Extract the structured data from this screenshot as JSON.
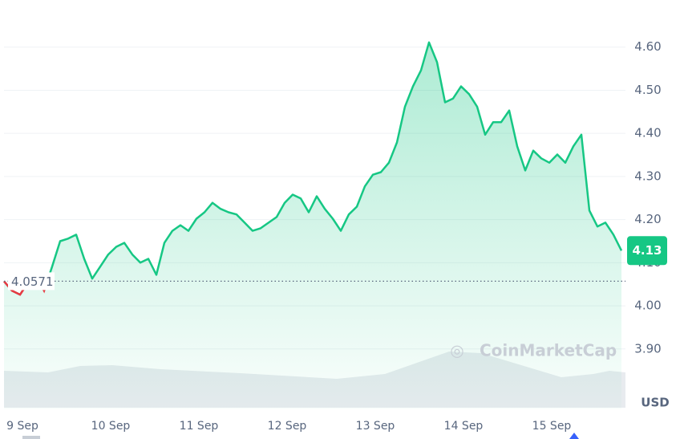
{
  "chart_data": {
    "type": "line",
    "series": [
      {
        "name": "Price",
        "color": "#16c784",
        "below_color": "#ea3943",
        "values": [
          4.057,
          4.035,
          4.026,
          4.054,
          4.072,
          4.035,
          4.091,
          4.15,
          4.156,
          4.165,
          4.109,
          4.063,
          4.091,
          4.119,
          4.137,
          4.146,
          4.119,
          4.1,
          4.109,
          4.072,
          4.146,
          4.174,
          4.187,
          4.174,
          4.202,
          4.217,
          4.239,
          4.225,
          4.217,
          4.212,
          4.193,
          4.174,
          4.18,
          4.193,
          4.206,
          4.239,
          4.258,
          4.249,
          4.217,
          4.254,
          4.225,
          4.202,
          4.174,
          4.212,
          4.23,
          4.277,
          4.304,
          4.31,
          4.332,
          4.379,
          4.462,
          4.509,
          4.546,
          4.611,
          4.565,
          4.472,
          4.481,
          4.509,
          4.491,
          4.462,
          4.397,
          4.426,
          4.426,
          4.453,
          4.37,
          4.314,
          4.36,
          4.342,
          4.332,
          4.351,
          4.332,
          4.37,
          4.397,
          4.221,
          4.184,
          4.193,
          4.165,
          4.128
        ]
      }
    ],
    "xlim": [
      0,
      77.5
    ],
    "xticks": [
      {
        "value": 2.3,
        "label": "9 Sep"
      },
      {
        "value": 13.3,
        "label": "10 Sep"
      },
      {
        "value": 24.3,
        "label": "11 Sep"
      },
      {
        "value": 35.3,
        "label": "12 Sep"
      },
      {
        "value": 46.3,
        "label": "13 Sep"
      },
      {
        "value": 57.3,
        "label": "14 Sep"
      },
      {
        "value": 68.3,
        "label": "15 Sep"
      }
    ],
    "ylim": [
      3.76,
      4.7
    ],
    "yticks": [
      {
        "value": 3.9,
        "label": "3.90"
      },
      {
        "value": 4.0,
        "label": "4.00"
      },
      {
        "value": 4.1,
        "label": "4.10"
      },
      {
        "value": 4.2,
        "label": "4.20"
      },
      {
        "value": 4.3,
        "label": "4.30"
      },
      {
        "value": 4.4,
        "label": "4.40"
      },
      {
        "value": 4.5,
        "label": "4.50"
      },
      {
        "value": 4.6,
        "label": "4.60"
      }
    ],
    "reference": {
      "value": 4.0571,
      "label": "4.0571"
    },
    "current_price_label": "4.13",
    "currency": "USD",
    "watermark": "CoinMarketCap",
    "grid": true
  }
}
